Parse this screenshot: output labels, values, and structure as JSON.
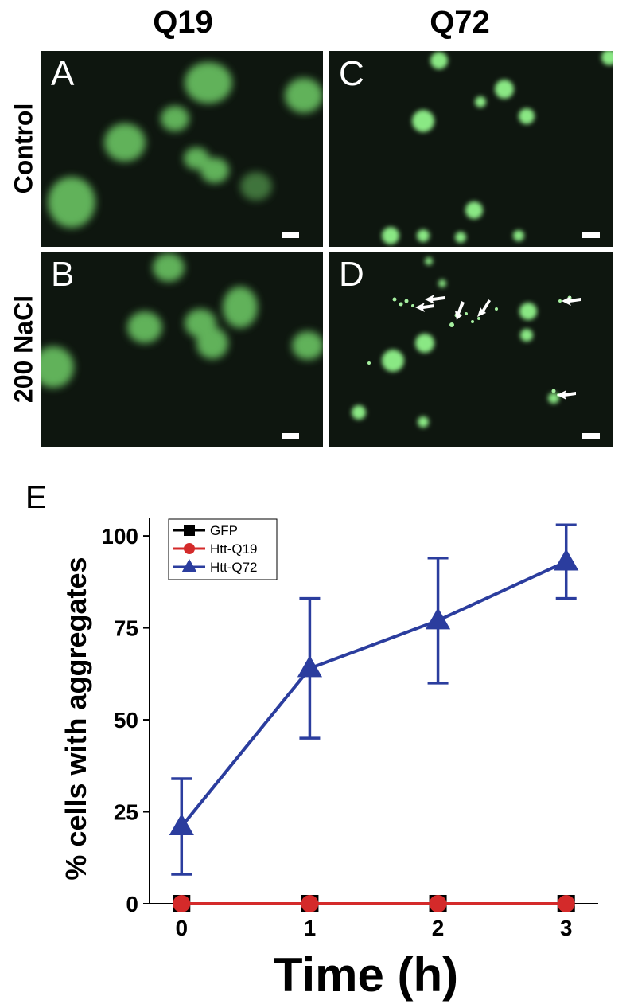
{
  "figure": {
    "columns": [
      "Q19",
      "Q72"
    ],
    "rows": [
      "Control",
      "200 NaCl"
    ],
    "panels": [
      "A",
      "B",
      "C",
      "D"
    ],
    "panel_e_label": "E",
    "colors": {
      "fluorescence": "#7ee07a",
      "background": "#0e160f",
      "arrow": "#ffffff"
    }
  },
  "chart_data": {
    "type": "line",
    "xlabel": "Time (h)",
    "ylabel": "% cells with aggregates",
    "x": [
      0,
      1,
      2,
      3
    ],
    "xticks": [
      "0",
      "1",
      "2",
      "3"
    ],
    "yticks": [
      "0",
      "25",
      "50",
      "75",
      "100"
    ],
    "ylim": [
      0,
      105
    ],
    "xlim": [
      -0.25,
      3.25
    ],
    "legend_position": "top-left",
    "series": [
      {
        "name": "GFP",
        "values": [
          0,
          0,
          0,
          0
        ],
        "errors": [
          0,
          0,
          0,
          0
        ],
        "color": "#000000",
        "marker": "square"
      },
      {
        "name": "Htt-Q19",
        "values": [
          0,
          0,
          0,
          0
        ],
        "errors": [
          0,
          0,
          0,
          0
        ],
        "color": "#d42a2a",
        "marker": "circle"
      },
      {
        "name": "Htt-Q72",
        "values": [
          21,
          64,
          77,
          93
        ],
        "errors": [
          13,
          19,
          17,
          10
        ],
        "color": "#2b3d9e",
        "marker": "triangle"
      }
    ]
  }
}
